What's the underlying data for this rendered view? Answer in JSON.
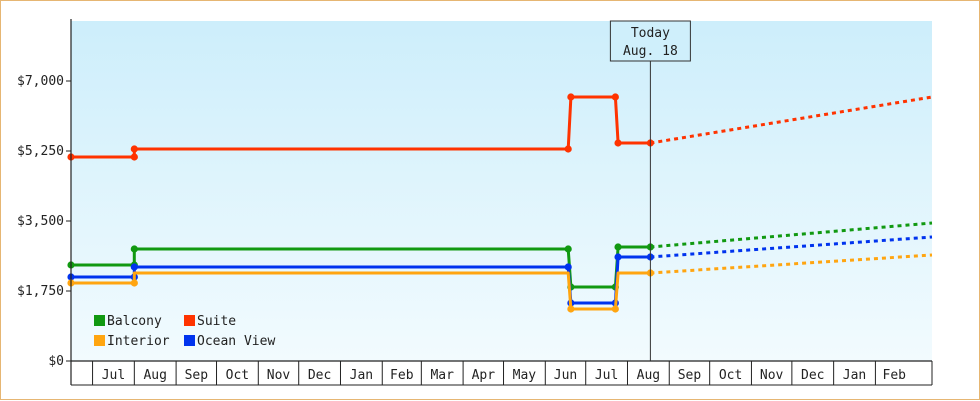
{
  "chart_data": {
    "type": "line",
    "title": "",
    "xlabel": "",
    "ylabel": "",
    "ylim": [
      0,
      8500
    ],
    "y_ticks": [
      {
        "value": 0,
        "label": "$0"
      },
      {
        "value": 1750,
        "label": "$1,750"
      },
      {
        "value": 3500,
        "label": "$3,500"
      },
      {
        "value": 5250,
        "label": "$5,250"
      },
      {
        "value": 7000,
        "label": "$7,000"
      }
    ],
    "months": [
      "Jul",
      "Aug",
      "Sep",
      "Oct",
      "Nov",
      "Dec",
      "Jan",
      "Feb",
      "Mar",
      "Apr",
      "May",
      "Jun",
      "Jul",
      "Aug",
      "Sep",
      "Oct",
      "Nov",
      "Dec",
      "Jan",
      "Feb"
    ],
    "x_range": [
      "2023-06-15",
      "2025-03-15"
    ],
    "today": {
      "line1": "Today",
      "line2": "Aug. 18",
      "date": "2024-08-18"
    },
    "background_gradient": [
      "#cdeefb",
      "#f2fbfe"
    ],
    "grid": false,
    "legend": {
      "placement": "bottom-left"
    },
    "series": [
      {
        "name": "Suite",
        "color": "#ff3300",
        "points": [
          {
            "date": "2023-06-15",
            "value": 5100
          },
          {
            "date": "2023-08-01",
            "value": 5100
          },
          {
            "date": "2023-08-01",
            "value": 5300
          },
          {
            "date": "2024-06-18",
            "value": 5300
          },
          {
            "date": "2024-06-20",
            "value": 6600
          },
          {
            "date": "2024-07-23",
            "value": 6600
          },
          {
            "date": "2024-07-25",
            "value": 5450
          },
          {
            "date": "2024-08-18",
            "value": 5450
          }
        ],
        "markers": [
          {
            "date": "2023-06-15",
            "value": 5100
          },
          {
            "date": "2023-08-01",
            "value": 5100
          },
          {
            "date": "2023-08-01",
            "value": 5300
          },
          {
            "date": "2024-06-18",
            "value": 5300
          },
          {
            "date": "2024-06-20",
            "value": 6600
          },
          {
            "date": "2024-07-23",
            "value": 6600
          },
          {
            "date": "2024-07-25",
            "value": 5450
          },
          {
            "date": "2024-08-18",
            "value": 5450
          }
        ],
        "forecast": [
          {
            "date": "2024-08-18",
            "value": 5450
          },
          {
            "date": "2025-03-15",
            "value": 6600
          }
        ]
      },
      {
        "name": "Balcony",
        "color": "#119911",
        "points": [
          {
            "date": "2023-06-15",
            "value": 2400
          },
          {
            "date": "2023-08-01",
            "value": 2400
          },
          {
            "date": "2023-08-01",
            "value": 2800
          },
          {
            "date": "2024-06-18",
            "value": 2800
          },
          {
            "date": "2024-06-20",
            "value": 1850
          },
          {
            "date": "2024-07-23",
            "value": 1850
          },
          {
            "date": "2024-07-25",
            "value": 2850
          },
          {
            "date": "2024-08-18",
            "value": 2850
          }
        ],
        "markers": [
          {
            "date": "2023-06-15",
            "value": 2400
          },
          {
            "date": "2023-08-01",
            "value": 2400
          },
          {
            "date": "2023-08-01",
            "value": 2800
          },
          {
            "date": "2024-06-18",
            "value": 2800
          },
          {
            "date": "2024-06-20",
            "value": 1850
          },
          {
            "date": "2024-07-23",
            "value": 1850
          },
          {
            "date": "2024-07-25",
            "value": 2850
          },
          {
            "date": "2024-08-18",
            "value": 2850
          }
        ],
        "forecast": [
          {
            "date": "2024-08-18",
            "value": 2850
          },
          {
            "date": "2025-03-15",
            "value": 3450
          }
        ]
      },
      {
        "name": "Ocean View",
        "color": "#0033ee",
        "points": [
          {
            "date": "2023-06-15",
            "value": 2100
          },
          {
            "date": "2023-08-01",
            "value": 2100
          },
          {
            "date": "2023-08-01",
            "value": 2350
          },
          {
            "date": "2024-06-18",
            "value": 2350
          },
          {
            "date": "2024-06-20",
            "value": 1450
          },
          {
            "date": "2024-07-23",
            "value": 1450
          },
          {
            "date": "2024-07-25",
            "value": 2600
          },
          {
            "date": "2024-08-18",
            "value": 2600
          }
        ],
        "markers": [
          {
            "date": "2023-06-15",
            "value": 2100
          },
          {
            "date": "2023-08-01",
            "value": 2100
          },
          {
            "date": "2023-08-01",
            "value": 2350
          },
          {
            "date": "2024-06-18",
            "value": 2350
          },
          {
            "date": "2024-06-20",
            "value": 1450
          },
          {
            "date": "2024-07-23",
            "value": 1450
          },
          {
            "date": "2024-07-25",
            "value": 2600
          },
          {
            "date": "2024-08-18",
            "value": 2600
          }
        ],
        "forecast": [
          {
            "date": "2024-08-18",
            "value": 2600
          },
          {
            "date": "2025-03-15",
            "value": 3100
          }
        ]
      },
      {
        "name": "Interior",
        "color": "#ffa510",
        "points": [
          {
            "date": "2023-06-15",
            "value": 1950
          },
          {
            "date": "2023-08-01",
            "value": 1950
          },
          {
            "date": "2023-08-01",
            "value": 2200
          },
          {
            "date": "2024-06-18",
            "value": 2200
          },
          {
            "date": "2024-06-20",
            "value": 1300
          },
          {
            "date": "2024-07-23",
            "value": 1300
          },
          {
            "date": "2024-07-25",
            "value": 2200
          },
          {
            "date": "2024-08-18",
            "value": 2200
          }
        ],
        "markers": [
          {
            "date": "2023-06-15",
            "value": 1950
          },
          {
            "date": "2023-08-01",
            "value": 1950
          },
          {
            "date": "2024-06-20",
            "value": 1300
          },
          {
            "date": "2024-07-23",
            "value": 1300
          },
          {
            "date": "2024-08-18",
            "value": 2200
          }
        ],
        "forecast": [
          {
            "date": "2024-08-18",
            "value": 2200
          },
          {
            "date": "2025-03-15",
            "value": 2650
          }
        ]
      }
    ],
    "legend_order": [
      "Balcony",
      "Suite",
      "Interior",
      "Ocean View"
    ]
  }
}
